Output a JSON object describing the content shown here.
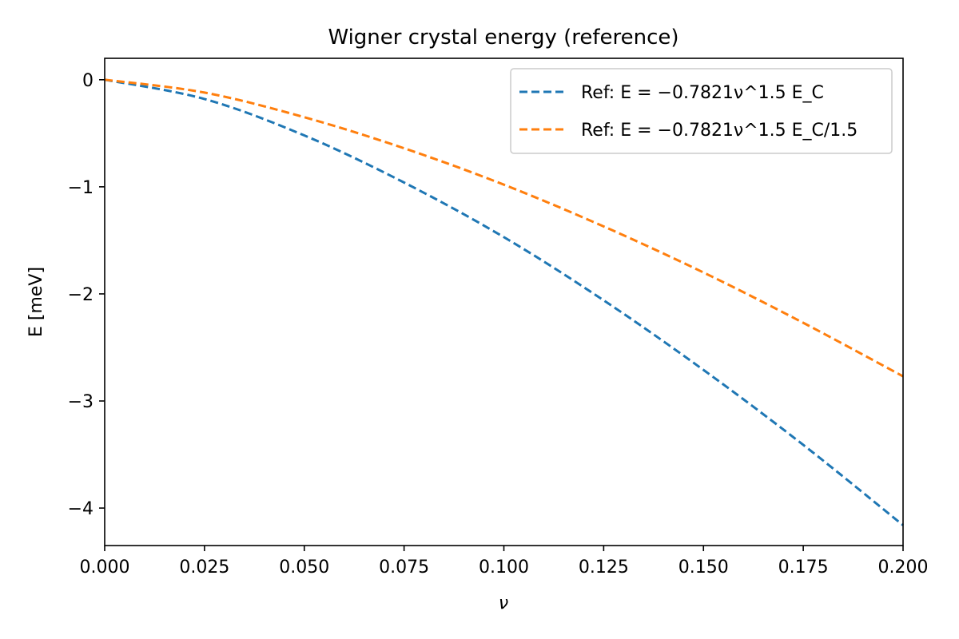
{
  "chart_data": {
    "type": "line",
    "title": "Wigner crystal energy (reference)",
    "xlabel": "ν",
    "ylabel": "E [meV]",
    "xlim": [
      0.0,
      0.2
    ],
    "ylim": [
      -4.35,
      0.2
    ],
    "x_ticks": [
      0.0,
      0.025,
      0.05,
      0.075,
      0.1,
      0.125,
      0.15,
      0.175,
      0.2
    ],
    "x_tick_labels": [
      "0.000",
      "0.025",
      "0.050",
      "0.075",
      "0.100",
      "0.125",
      "0.150",
      "0.175",
      "0.200"
    ],
    "y_ticks": [
      0,
      -1,
      -2,
      -3,
      -4
    ],
    "y_tick_labels": [
      "0",
      "−1",
      "−2",
      "−3",
      "−4"
    ],
    "grid": false,
    "legend_position": "top-right",
    "x": [
      0.0,
      0.025,
      0.05,
      0.075,
      0.1,
      0.125,
      0.15,
      0.175,
      0.2
    ],
    "series": [
      {
        "name": "Ref: E = −0.7821ν^1.5 E_C",
        "color": "#1f77b4",
        "style": "dashed",
        "values": [
          0.0,
          -0.18,
          -0.52,
          -0.96,
          -1.47,
          -2.06,
          -2.71,
          -3.41,
          -4.16
        ]
      },
      {
        "name": "Ref: E = −0.7821ν^1.5 E_C/1.5",
        "color": "#ff7f0e",
        "style": "dashed",
        "values": [
          0.0,
          -0.12,
          -0.35,
          -0.64,
          -0.98,
          -1.37,
          -1.8,
          -2.27,
          -2.77
        ]
      }
    ]
  }
}
